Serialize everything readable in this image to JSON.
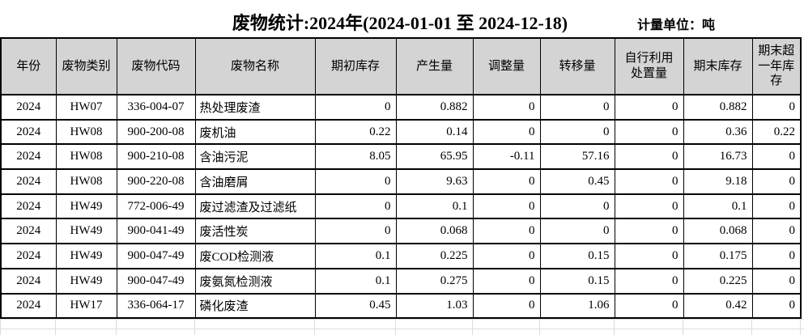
{
  "page": {
    "title": "废物统计:2024年(2024-01-01 至 2024-12-18)",
    "unit_label": "计量单位：吨"
  },
  "table": {
    "columns": [
      "年份",
      "废物类别",
      "废物代码",
      "废物名称",
      "期初库存",
      "产生量",
      "调整量",
      "转移量",
      "自行利用处置量",
      "期末库存",
      "期末超一年库存"
    ],
    "rows": [
      [
        "2024",
        "HW07",
        "336-004-07",
        "热处理废渣",
        "0",
        "0.882",
        "0",
        "0",
        "0",
        "0.882",
        "0"
      ],
      [
        "2024",
        "HW08",
        "900-200-08",
        "废机油",
        "0.22",
        "0.14",
        "0",
        "0",
        "0",
        "0.36",
        "0.22"
      ],
      [
        "2024",
        "HW08",
        "900-210-08",
        "含油污泥",
        "8.05",
        "65.95",
        "-0.11",
        "57.16",
        "0",
        "16.73",
        "0"
      ],
      [
        "2024",
        "HW08",
        "900-220-08",
        "含油磨屑",
        "0",
        "9.63",
        "0",
        "0.45",
        "0",
        "9.18",
        "0"
      ],
      [
        "2024",
        "HW49",
        "772-006-49",
        "废过滤渣及过滤纸",
        "0",
        "0.1",
        "0",
        "0",
        "0",
        "0.1",
        "0"
      ],
      [
        "2024",
        "HW49",
        "900-041-49",
        "废活性炭",
        "0",
        "0.068",
        "0",
        "0",
        "0",
        "0.068",
        "0"
      ],
      [
        "2024",
        "HW49",
        "900-047-49",
        "废COD检测液",
        "0.1",
        "0.225",
        "0",
        "0.15",
        "0",
        "0.175",
        "0"
      ],
      [
        "2024",
        "HW49",
        "900-047-49",
        "废氨氮检测液",
        "0.1",
        "0.275",
        "0",
        "0.15",
        "0",
        "0.225",
        "0"
      ],
      [
        "2024",
        "HW17",
        "336-064-17",
        "磷化废渣",
        "0.45",
        "1.03",
        "0",
        "1.06",
        "0",
        "0.42",
        "0"
      ]
    ]
  },
  "colors": {
    "header_bg": "#d4d4d4",
    "table_border": "#000000",
    "gridline": "#dcdcdc"
  }
}
